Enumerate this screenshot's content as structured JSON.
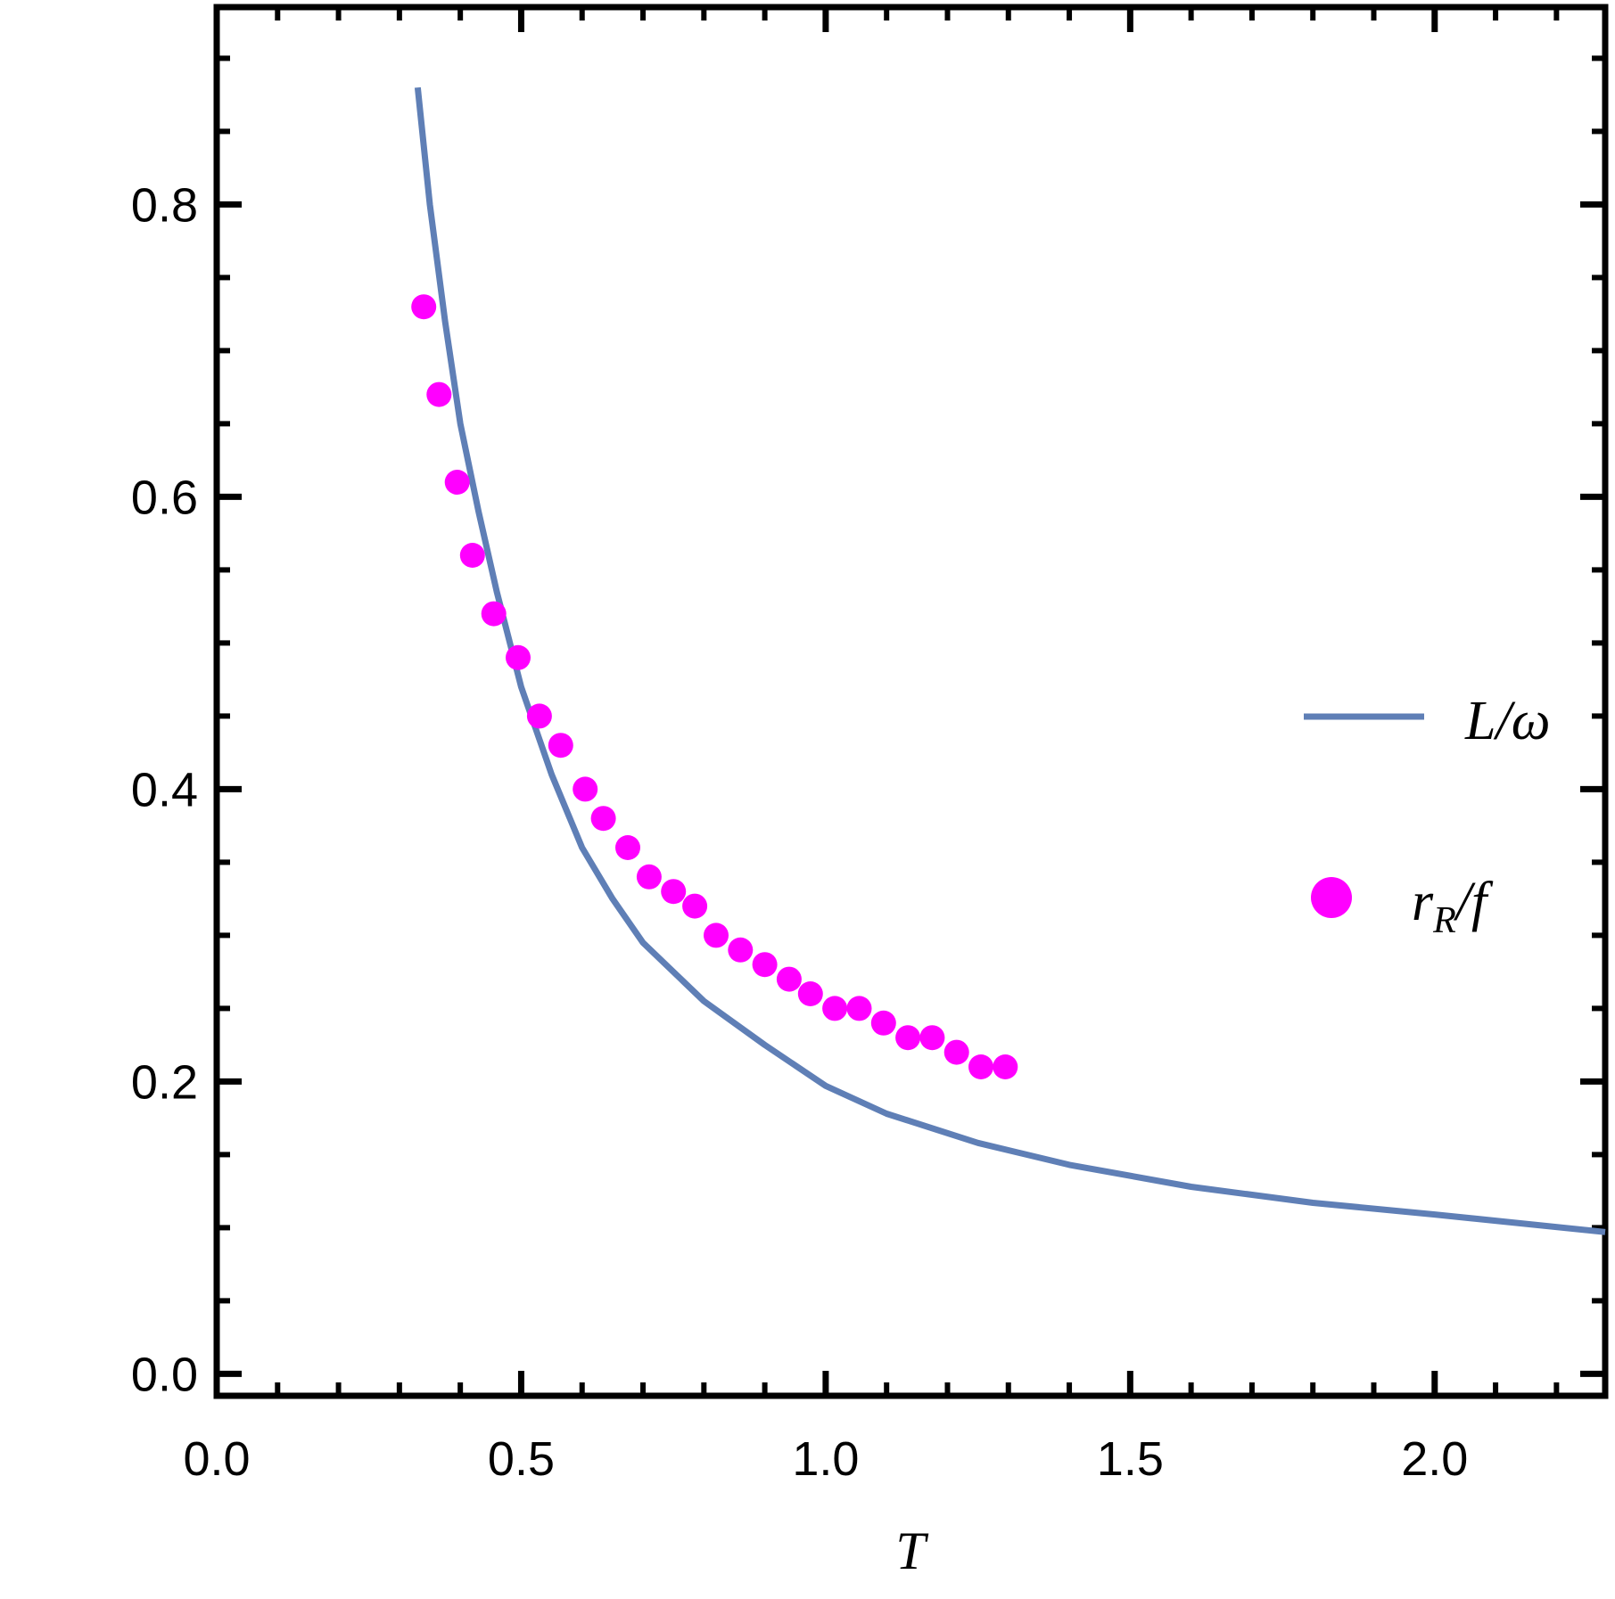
{
  "chart_data": {
    "type": "line",
    "xlabel": "T",
    "ylabel": "",
    "xlim": [
      0.0,
      2.28
    ],
    "ylim": [
      -0.015,
      0.935
    ],
    "x_ticks": [
      {
        "value": 0.0,
        "label": "0.0"
      },
      {
        "value": 0.5,
        "label": "0.5"
      },
      {
        "value": 1.0,
        "label": "1.0"
      },
      {
        "value": 1.5,
        "label": "1.5"
      },
      {
        "value": 2.0,
        "label": "2.0"
      }
    ],
    "y_ticks": [
      {
        "value": 0.0,
        "label": "0.0"
      },
      {
        "value": 0.2,
        "label": "0.2"
      },
      {
        "value": 0.4,
        "label": "0.4"
      },
      {
        "value": 0.6,
        "label": "0.6"
      },
      {
        "value": 0.8,
        "label": "0.8"
      }
    ],
    "x_minor_step": 0.1,
    "y_minor_step": 0.05,
    "grid": false,
    "legend": {
      "placement": "right"
    },
    "series": [
      {
        "name": "L/ω",
        "type": "line",
        "color": "#5f7fb6",
        "x": [
          0.33,
          0.35,
          0.375,
          0.4,
          0.43,
          0.46,
          0.5,
          0.55,
          0.6,
          0.65,
          0.7,
          0.8,
          0.9,
          1.0,
          1.1,
          1.25,
          1.4,
          1.6,
          1.8,
          2.0,
          2.28
        ],
        "y": [
          0.88,
          0.8,
          0.72,
          0.65,
          0.59,
          0.535,
          0.47,
          0.41,
          0.36,
          0.325,
          0.295,
          0.255,
          0.225,
          0.197,
          0.178,
          0.158,
          0.143,
          0.128,
          0.117,
          0.109,
          0.097
        ]
      },
      {
        "name": "r_R/f",
        "type": "scatter",
        "color": "#ff00ff",
        "x": [
          0.34,
          0.365,
          0.395,
          0.42,
          0.455,
          0.495,
          0.53,
          0.565,
          0.605,
          0.635,
          0.675,
          0.71,
          0.75,
          0.785,
          0.82,
          0.86,
          0.9,
          0.94,
          0.975,
          1.015,
          1.055,
          1.095,
          1.135,
          1.175,
          1.215,
          1.255,
          1.295
        ],
        "y": [
          0.73,
          0.67,
          0.61,
          0.56,
          0.52,
          0.49,
          0.45,
          0.43,
          0.4,
          0.38,
          0.36,
          0.34,
          0.33,
          0.32,
          0.3,
          0.29,
          0.28,
          0.27,
          0.26,
          0.25,
          0.25,
          0.24,
          0.23,
          0.23,
          0.22,
          0.21,
          0.21
        ]
      }
    ]
  }
}
